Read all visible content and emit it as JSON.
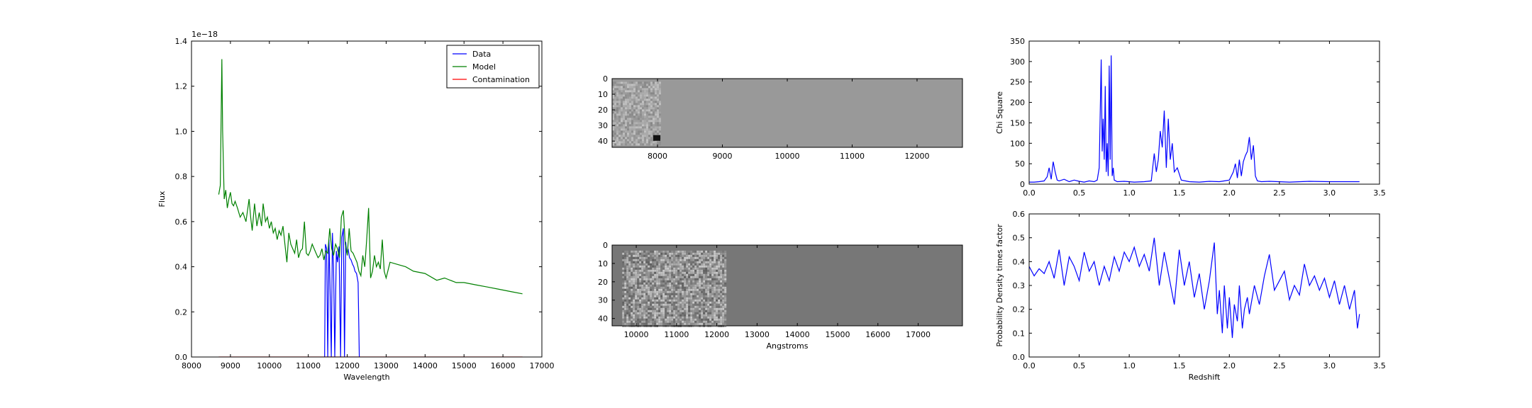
{
  "chart_data": [
    {
      "type": "line",
      "xlabel": "Wavelength",
      "ylabel": "Flux",
      "offset_label": "1e−18",
      "xlim": [
        8000,
        17000
      ],
      "ylim": [
        0,
        1.4
      ],
      "xticks": [
        "8000",
        "9000",
        "10000",
        "11000",
        "12000",
        "13000",
        "14000",
        "15000",
        "16000",
        "17000"
      ],
      "yticks": [
        "0.0",
        "0.2",
        "0.4",
        "0.6",
        "0.8",
        "1.0",
        "1.2",
        "1.4"
      ],
      "legend_position": "top-right",
      "grid": false,
      "series": [
        {
          "name": "Data",
          "color": "#0000ff",
          "x": [
            11420,
            11440,
            11470,
            11500,
            11530,
            11560,
            11590,
            11620,
            11650,
            11680,
            11720,
            11750,
            11790,
            11830,
            11860,
            11900,
            11930,
            11960,
            11990,
            12020,
            12060,
            12100,
            12140,
            12170,
            12200,
            12240,
            12280,
            12310
          ],
          "y": [
            0.0,
            0.5,
            0.48,
            0.0,
            0.52,
            0.3,
            0.0,
            0.55,
            0.4,
            0.0,
            0.47,
            0.42,
            0.49,
            0.0,
            0.53,
            0.57,
            0.0,
            0.51,
            0.46,
            0.48,
            0.44,
            0.43,
            0.41,
            0.4,
            0.38,
            0.37,
            0.33,
            0.0
          ]
        },
        {
          "name": "Model",
          "color": "#008000",
          "x": [
            8700,
            8740,
            8780,
            8800,
            8840,
            8880,
            8920,
            8960,
            9000,
            9040,
            9080,
            9120,
            9180,
            9250,
            9320,
            9400,
            9480,
            9520,
            9560,
            9620,
            9680,
            9740,
            9800,
            9840,
            9900,
            9950,
            10000,
            10050,
            10100,
            10150,
            10200,
            10250,
            10300,
            10350,
            10400,
            10450,
            10500,
            10550,
            10600,
            10650,
            10700,
            10750,
            10800,
            10850,
            10900,
            10950,
            11000,
            11050,
            11100,
            11150,
            11200,
            11250,
            11300,
            11350,
            11400,
            11450,
            11500,
            11550,
            11600,
            11650,
            11700,
            11750,
            11800,
            11850,
            11900,
            11950,
            12000,
            12050,
            12100,
            12150,
            12200,
            12250,
            12300,
            12350,
            12400,
            12450,
            12500,
            12550,
            12600,
            12650,
            12700,
            12750,
            12800,
            12850,
            12900,
            12950,
            13000,
            13100,
            13300,
            13500,
            13700,
            14000,
            14300,
            14500,
            14800,
            15000,
            15300,
            15600,
            15900,
            16200,
            16500
          ],
          "y": [
            0.72,
            0.76,
            1.32,
            1.0,
            0.7,
            0.74,
            0.66,
            0.7,
            0.73,
            0.68,
            0.67,
            0.69,
            0.66,
            0.62,
            0.64,
            0.6,
            0.7,
            0.62,
            0.56,
            0.68,
            0.58,
            0.64,
            0.58,
            0.68,
            0.6,
            0.62,
            0.57,
            0.6,
            0.55,
            0.57,
            0.52,
            0.56,
            0.54,
            0.58,
            0.5,
            0.42,
            0.55,
            0.5,
            0.48,
            0.46,
            0.52,
            0.44,
            0.47,
            0.48,
            0.6,
            0.46,
            0.45,
            0.47,
            0.5,
            0.48,
            0.46,
            0.44,
            0.45,
            0.48,
            0.43,
            0.47,
            0.46,
            0.57,
            0.48,
            0.45,
            0.5,
            0.48,
            0.44,
            0.62,
            0.65,
            0.5,
            0.45,
            0.57,
            0.47,
            0.46,
            0.44,
            0.42,
            0.38,
            0.36,
            0.45,
            0.4,
            0.52,
            0.66,
            0.35,
            0.38,
            0.45,
            0.4,
            0.42,
            0.39,
            0.52,
            0.38,
            0.35,
            0.42,
            0.41,
            0.4,
            0.38,
            0.37,
            0.34,
            0.35,
            0.33,
            0.33,
            0.32,
            0.31,
            0.3,
            0.29,
            0.28
          ]
        },
        {
          "name": "Contamination",
          "color": "#ff0000",
          "x": [
            8700,
            16500
          ],
          "y": [
            0.0,
            0.0
          ]
        }
      ]
    },
    {
      "type": "heatmap",
      "xlim": [
        7300,
        12700
      ],
      "ylim": [
        44,
        0
      ],
      "xticks": [
        "8000",
        "9000",
        "10000",
        "11000",
        "12000"
      ],
      "yticks": [
        "0",
        "10",
        "20",
        "30",
        "40"
      ],
      "background_color": "#999999",
      "noise_region_x": [
        7300,
        8050
      ],
      "noise_region_y": [
        2,
        42
      ],
      "dark_spot": {
        "x": 8000,
        "y": 38
      }
    },
    {
      "type": "heatmap",
      "xlabel": "Angstroms",
      "xlim": [
        9400,
        18100
      ],
      "ylim": [
        44,
        0
      ],
      "xticks": [
        "10000",
        "11000",
        "12000",
        "13000",
        "14000",
        "15000",
        "16000",
        "17000"
      ],
      "yticks": [
        "0",
        "10",
        "20",
        "30",
        "40"
      ],
      "background_color": "#777777",
      "noise_region_x": [
        9650,
        12200
      ],
      "noise_region_y": [
        3,
        47
      ]
    },
    {
      "type": "line",
      "ylabel": "Chi Square",
      "xlim": [
        0,
        3.5
      ],
      "ylim": [
        0,
        350
      ],
      "xticks": [
        "0.0",
        "0.5",
        "1.0",
        "1.5",
        "2.0",
        "2.5",
        "3.0",
        "3.5"
      ],
      "yticks": [
        "0",
        "50",
        "100",
        "150",
        "200",
        "250",
        "300",
        "350"
      ],
      "series": [
        {
          "color": "#0000ff",
          "x": [
            0.0,
            0.05,
            0.1,
            0.15,
            0.18,
            0.2,
            0.22,
            0.24,
            0.26,
            0.28,
            0.3,
            0.35,
            0.4,
            0.45,
            0.5,
            0.55,
            0.6,
            0.65,
            0.68,
            0.7,
            0.72,
            0.73,
            0.74,
            0.75,
            0.76,
            0.77,
            0.78,
            0.79,
            0.8,
            0.81,
            0.82,
            0.83,
            0.84,
            0.85,
            0.88,
            0.95,
            1.05,
            1.15,
            1.22,
            1.25,
            1.27,
            1.29,
            1.31,
            1.33,
            1.35,
            1.37,
            1.39,
            1.41,
            1.43,
            1.45,
            1.48,
            1.52,
            1.6,
            1.7,
            1.8,
            1.9,
            1.95,
            2.0,
            2.04,
            2.06,
            2.08,
            2.1,
            2.12,
            2.14,
            2.16,
            2.18,
            2.2,
            2.22,
            2.24,
            2.26,
            2.28,
            2.32,
            2.4,
            2.6,
            2.8,
            3.0,
            3.2,
            3.3
          ],
          "y": [
            5,
            5,
            6,
            8,
            18,
            40,
            12,
            55,
            30,
            10,
            8,
            12,
            6,
            10,
            7,
            5,
            8,
            6,
            10,
            40,
            305,
            80,
            160,
            60,
            240,
            30,
            100,
            20,
            290,
            60,
            315,
            20,
            40,
            10,
            6,
            7,
            5,
            6,
            8,
            75,
            30,
            60,
            130,
            90,
            180,
            40,
            160,
            60,
            100,
            30,
            40,
            10,
            6,
            5,
            7,
            6,
            8,
            10,
            30,
            50,
            15,
            60,
            20,
            55,
            70,
            80,
            115,
            60,
            95,
            20,
            8,
            6,
            7,
            5,
            7,
            6,
            6,
            6
          ]
        }
      ]
    },
    {
      "type": "line",
      "xlabel": "Redshift",
      "ylabel": "Probability Density times factor",
      "xlim": [
        0,
        3.5
      ],
      "ylim": [
        0,
        0.6
      ],
      "xticks": [
        "0.0",
        "0.5",
        "1.0",
        "1.5",
        "2.0",
        "2.5",
        "3.0",
        "3.5"
      ],
      "yticks": [
        "0.0",
        "0.1",
        "0.2",
        "0.3",
        "0.4",
        "0.5",
        "0.6"
      ],
      "series": [
        {
          "color": "#0000ff",
          "x": [
            0.0,
            0.05,
            0.1,
            0.15,
            0.2,
            0.25,
            0.3,
            0.35,
            0.4,
            0.45,
            0.5,
            0.55,
            0.6,
            0.65,
            0.7,
            0.75,
            0.8,
            0.85,
            0.9,
            0.95,
            1.0,
            1.05,
            1.1,
            1.15,
            1.2,
            1.25,
            1.3,
            1.35,
            1.4,
            1.45,
            1.5,
            1.55,
            1.6,
            1.65,
            1.7,
            1.75,
            1.8,
            1.85,
            1.88,
            1.9,
            1.93,
            1.95,
            1.98,
            2.0,
            2.03,
            2.05,
            2.08,
            2.1,
            2.13,
            2.15,
            2.18,
            2.2,
            2.25,
            2.3,
            2.35,
            2.4,
            2.45,
            2.5,
            2.55,
            2.6,
            2.65,
            2.7,
            2.75,
            2.8,
            2.85,
            2.9,
            2.95,
            3.0,
            3.05,
            3.1,
            3.15,
            3.2,
            3.25,
            3.28,
            3.3
          ],
          "y": [
            0.38,
            0.34,
            0.37,
            0.35,
            0.4,
            0.33,
            0.45,
            0.3,
            0.42,
            0.38,
            0.32,
            0.44,
            0.36,
            0.4,
            0.3,
            0.38,
            0.32,
            0.42,
            0.36,
            0.44,
            0.4,
            0.46,
            0.38,
            0.43,
            0.36,
            0.5,
            0.3,
            0.44,
            0.33,
            0.22,
            0.45,
            0.3,
            0.4,
            0.25,
            0.35,
            0.2,
            0.32,
            0.48,
            0.18,
            0.28,
            0.1,
            0.3,
            0.12,
            0.25,
            0.08,
            0.22,
            0.15,
            0.3,
            0.12,
            0.2,
            0.25,
            0.18,
            0.3,
            0.22,
            0.34,
            0.43,
            0.28,
            0.32,
            0.36,
            0.24,
            0.3,
            0.26,
            0.39,
            0.3,
            0.34,
            0.28,
            0.33,
            0.25,
            0.32,
            0.22,
            0.3,
            0.2,
            0.28,
            0.12,
            0.18
          ]
        }
      ]
    }
  ]
}
